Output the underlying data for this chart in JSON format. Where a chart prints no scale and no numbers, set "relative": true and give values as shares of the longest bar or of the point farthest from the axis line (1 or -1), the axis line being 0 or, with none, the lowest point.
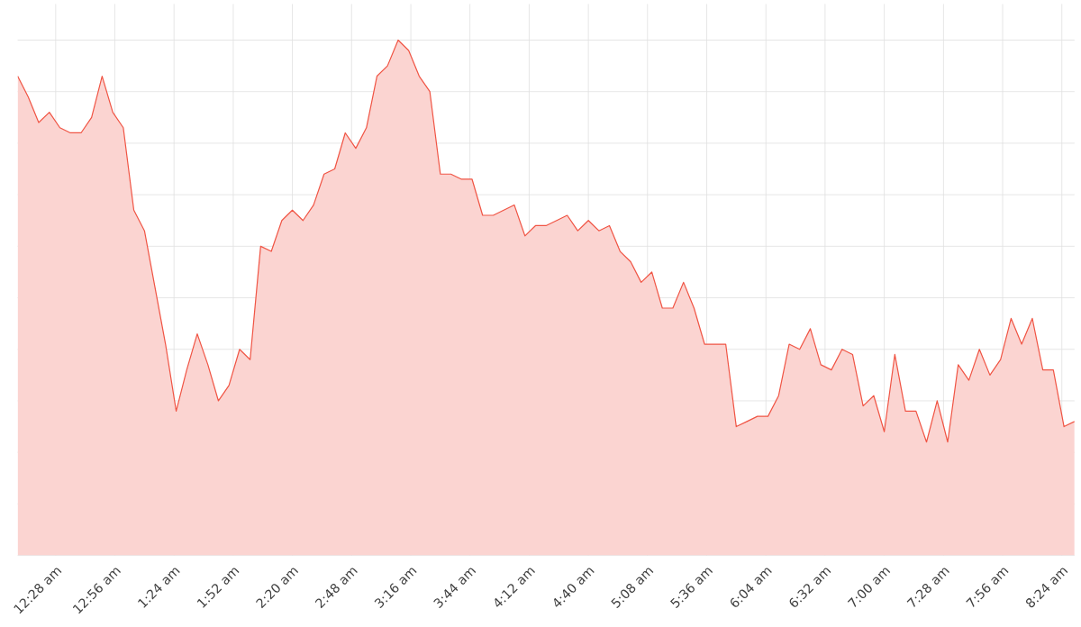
{
  "chart_data": {
    "type": "area",
    "relative": true,
    "grid": true,
    "marker": "none",
    "line_style": "solid",
    "x": [
      0.167,
      0.25,
      0.333,
      0.417,
      0.5,
      0.583,
      0.667,
      0.75,
      0.833,
      0.917,
      1.0,
      1.083,
      1.167,
      1.25,
      1.333,
      1.417,
      1.5,
      1.583,
      1.667,
      1.75,
      1.833,
      1.917,
      2.0,
      2.083,
      2.167,
      2.25,
      2.333,
      2.417,
      2.5,
      2.583,
      2.667,
      2.75,
      2.833,
      2.917,
      3.0,
      3.083,
      3.167,
      3.25,
      3.333,
      3.417,
      3.5,
      3.583,
      3.667,
      3.75,
      3.833,
      3.917,
      4.0,
      4.083,
      4.167,
      4.25,
      4.333,
      4.417,
      4.5,
      4.583,
      4.667,
      4.75,
      4.833,
      4.917,
      5.0,
      5.083,
      5.167,
      5.25,
      5.333,
      5.417,
      5.5,
      5.583,
      5.667,
      5.75,
      5.833,
      5.917,
      6.0,
      6.083,
      6.167,
      6.25,
      6.333,
      6.417,
      6.5,
      6.583,
      6.667,
      6.75,
      6.833,
      6.917,
      7.0,
      7.083,
      7.167,
      7.25,
      7.333,
      7.417,
      7.5,
      7.583,
      7.667,
      7.75,
      7.833,
      7.917,
      8.0,
      8.083,
      8.167,
      8.25,
      8.333,
      8.417,
      8.5
    ],
    "series": [
      {
        "color": "#f05545",
        "values": [
          0.93,
          0.89,
          0.84,
          0.86,
          0.83,
          0.82,
          0.82,
          0.85,
          0.93,
          0.86,
          0.83,
          0.67,
          0.63,
          0.52,
          0.41,
          0.28,
          0.36,
          0.43,
          0.37,
          0.3,
          0.33,
          0.4,
          0.38,
          0.6,
          0.59,
          0.65,
          0.67,
          0.65,
          0.68,
          0.74,
          0.75,
          0.82,
          0.79,
          0.83,
          0.93,
          0.95,
          1.0,
          0.98,
          0.93,
          0.9,
          0.74,
          0.74,
          0.73,
          0.73,
          0.66,
          0.66,
          0.67,
          0.68,
          0.62,
          0.64,
          0.64,
          0.65,
          0.66,
          0.63,
          0.65,
          0.63,
          0.64,
          0.59,
          0.57,
          0.53,
          0.55,
          0.48,
          0.48,
          0.53,
          0.48,
          0.41,
          0.41,
          0.41,
          0.25,
          0.26,
          0.27,
          0.27,
          0.31,
          0.41,
          0.4,
          0.44,
          0.37,
          0.36,
          0.4,
          0.39,
          0.29,
          0.31,
          0.24,
          0.39,
          0.28,
          0.28,
          0.22,
          0.3,
          0.22,
          0.37,
          0.34,
          0.4,
          0.35,
          0.38,
          0.46,
          0.41,
          0.46,
          0.36,
          0.36,
          0.25,
          0.26
        ]
      }
    ],
    "xlim": [
      0.167,
      8.5
    ],
    "xticks": [
      {
        "value": 0.467,
        "label": "12:28 am"
      },
      {
        "value": 0.933,
        "label": "12:56 am"
      },
      {
        "value": 1.4,
        "label": "1:24 am"
      },
      {
        "value": 1.867,
        "label": "1:52 am"
      },
      {
        "value": 2.333,
        "label": "2:20 am"
      },
      {
        "value": 2.8,
        "label": "2:48 am"
      },
      {
        "value": 3.267,
        "label": "3:16 am"
      },
      {
        "value": 3.733,
        "label": "3:44 am"
      },
      {
        "value": 4.2,
        "label": "4:12 am"
      },
      {
        "value": 4.667,
        "label": "4:40 am"
      },
      {
        "value": 5.133,
        "label": "5:08 am"
      },
      {
        "value": 5.6,
        "label": "5:36 am"
      },
      {
        "value": 6.067,
        "label": "6:04 am"
      },
      {
        "value": 6.533,
        "label": "6:32 am"
      },
      {
        "value": 7.0,
        "label": "7:00 am"
      },
      {
        "value": 7.467,
        "label": "7:28 am"
      },
      {
        "value": 7.933,
        "label": "7:56 am"
      },
      {
        "value": 8.4,
        "label": "8:24 am"
      }
    ]
  }
}
